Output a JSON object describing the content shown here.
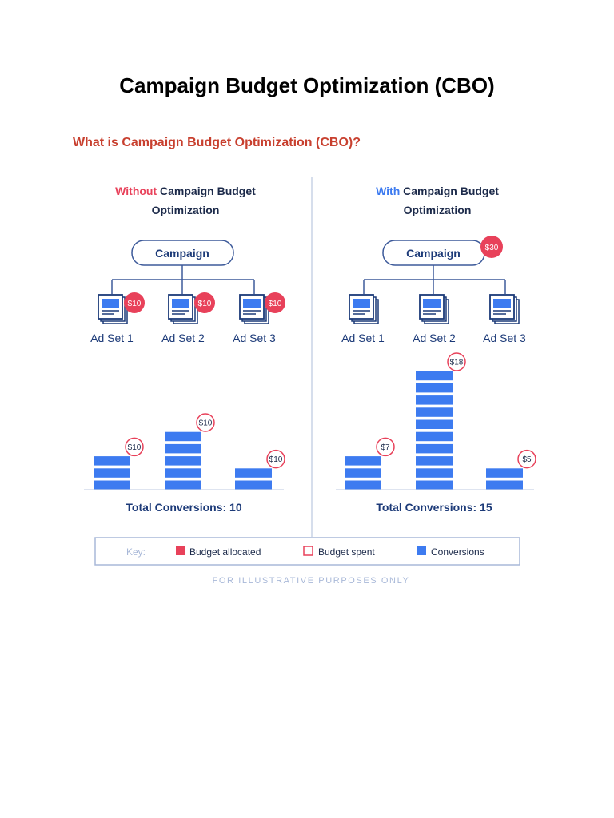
{
  "page": {
    "title": "Campaign Budget Optimization (CBO)",
    "subtitle": "What is Campaign Budget Optimization (CBO)?"
  },
  "colors": {
    "red": "#e8415a",
    "blue": "#3d7bf0",
    "navy": "#1c3a78",
    "gray_line": "#a8b8d8",
    "subtitle_red": "#c8402f"
  },
  "left_panel": {
    "heading_highlight": "Without",
    "heading_rest_1": " Campaign Budget",
    "heading_line_2": "Optimization",
    "campaign_label": "Campaign",
    "ad_sets": [
      {
        "label": "Ad Set 1",
        "budget_allocated": "$10",
        "budget_spent": "$10",
        "conversions": 3
      },
      {
        "label": "Ad Set 2",
        "budget_allocated": "$10",
        "budget_spent": "$10",
        "conversions": 5
      },
      {
        "label": "Ad Set 3",
        "budget_allocated": "$10",
        "budget_spent": "$10",
        "conversions": 2
      }
    ],
    "total_label": "Total Conversions: 10"
  },
  "right_panel": {
    "heading_highlight": "With",
    "heading_rest_1": " Campaign Budget",
    "heading_line_2": "Optimization",
    "campaign_label": "Campaign",
    "campaign_budget": "$30",
    "ad_sets": [
      {
        "label": "Ad Set 1",
        "budget_spent": "$7",
        "conversions": 3
      },
      {
        "label": "Ad Set 2",
        "budget_spent": "$18",
        "conversions": 10
      },
      {
        "label": "Ad Set 3",
        "budget_spent": "$5",
        "conversions": 2
      }
    ],
    "total_label": "Total Conversions: 15"
  },
  "key": {
    "label": "Key:",
    "items": [
      {
        "label": "Budget allocated",
        "icon": "filled-red-square"
      },
      {
        "label": "Budget spent",
        "icon": "outlined-red-square"
      },
      {
        "label": "Conversions",
        "icon": "filled-blue-square"
      }
    ]
  },
  "footnote": "FOR ILLUSTRATIVE PURPOSES ONLY"
}
